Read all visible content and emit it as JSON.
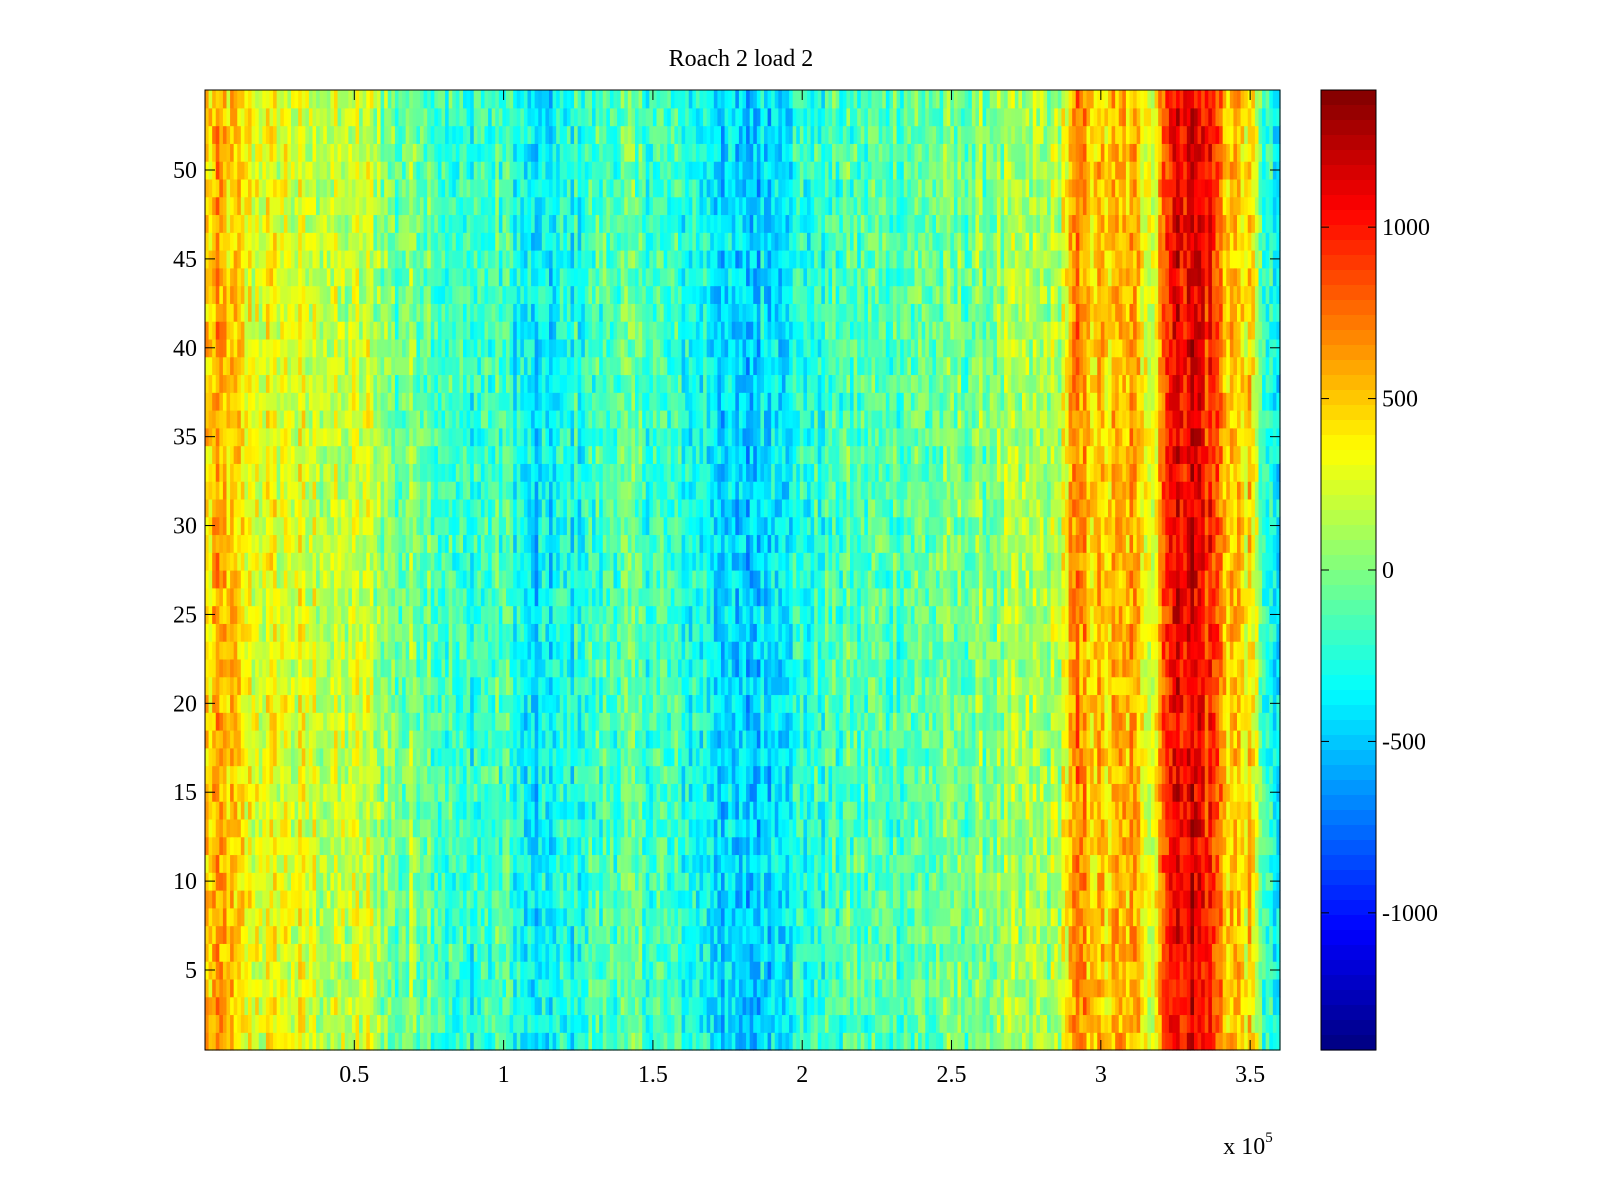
{
  "chart_data": {
    "type": "heatmap",
    "title": "Roach 2 load 2",
    "xlabel": "",
    "ylabel": "",
    "x_multiplier_label": "x 10",
    "x_multiplier_exponent": "5",
    "xlim": [
      0,
      360000
    ],
    "ylim": [
      0.5,
      54.5
    ],
    "x_ticks": [
      0.5,
      1,
      1.5,
      2,
      2.5,
      3,
      3.5
    ],
    "x_tick_labels": [
      "0.5",
      "1",
      "1.5",
      "2",
      "2.5",
      "3",
      "3.5"
    ],
    "y_ticks": [
      5,
      10,
      15,
      20,
      25,
      30,
      35,
      40,
      45,
      50
    ],
    "y_tick_labels": [
      "5",
      "10",
      "15",
      "20",
      "25",
      "30",
      "35",
      "40",
      "45",
      "50"
    ],
    "rows": 54,
    "colorbar": {
      "clim": [
        -1400,
        1400
      ],
      "colormap": "jet",
      "ticks": [
        -1000,
        -500,
        0,
        500,
        1000
      ],
      "tick_labels": [
        "-1000",
        "-500",
        "0",
        "500",
        "1000"
      ]
    },
    "column_profile_note_free": true,
    "column_profile": [
      {
        "x": 0,
        "value": 450
      },
      {
        "x": 5000,
        "value": 550
      },
      {
        "x": 15000,
        "value": 300
      },
      {
        "x": 30000,
        "value": 250
      },
      {
        "x": 45000,
        "value": 150
      },
      {
        "x": 55000,
        "value": 200
      },
      {
        "x": 65000,
        "value": -100
      },
      {
        "x": 70000,
        "value": 50
      },
      {
        "x": 85000,
        "value": -250
      },
      {
        "x": 100000,
        "value": -150
      },
      {
        "x": 110000,
        "value": -450
      },
      {
        "x": 125000,
        "value": -250
      },
      {
        "x": 140000,
        "value": -100
      },
      {
        "x": 155000,
        "value": -200
      },
      {
        "x": 170000,
        "value": -350
      },
      {
        "x": 180000,
        "value": -550
      },
      {
        "x": 195000,
        "value": -300
      },
      {
        "x": 215000,
        "value": -150
      },
      {
        "x": 235000,
        "value": -100
      },
      {
        "x": 255000,
        "value": -50
      },
      {
        "x": 270000,
        "value": 50
      },
      {
        "x": 285000,
        "value": 100
      },
      {
        "x": 292000,
        "value": 650
      },
      {
        "x": 300000,
        "value": 450
      },
      {
        "x": 310000,
        "value": 550
      },
      {
        "x": 318000,
        "value": 300
      },
      {
        "x": 322000,
        "value": 1000
      },
      {
        "x": 330000,
        "value": 1150
      },
      {
        "x": 338000,
        "value": 900
      },
      {
        "x": 342000,
        "value": 550
      },
      {
        "x": 350000,
        "value": 400
      },
      {
        "x": 356000,
        "value": -300
      },
      {
        "x": 360000,
        "value": -400
      }
    ]
  }
}
